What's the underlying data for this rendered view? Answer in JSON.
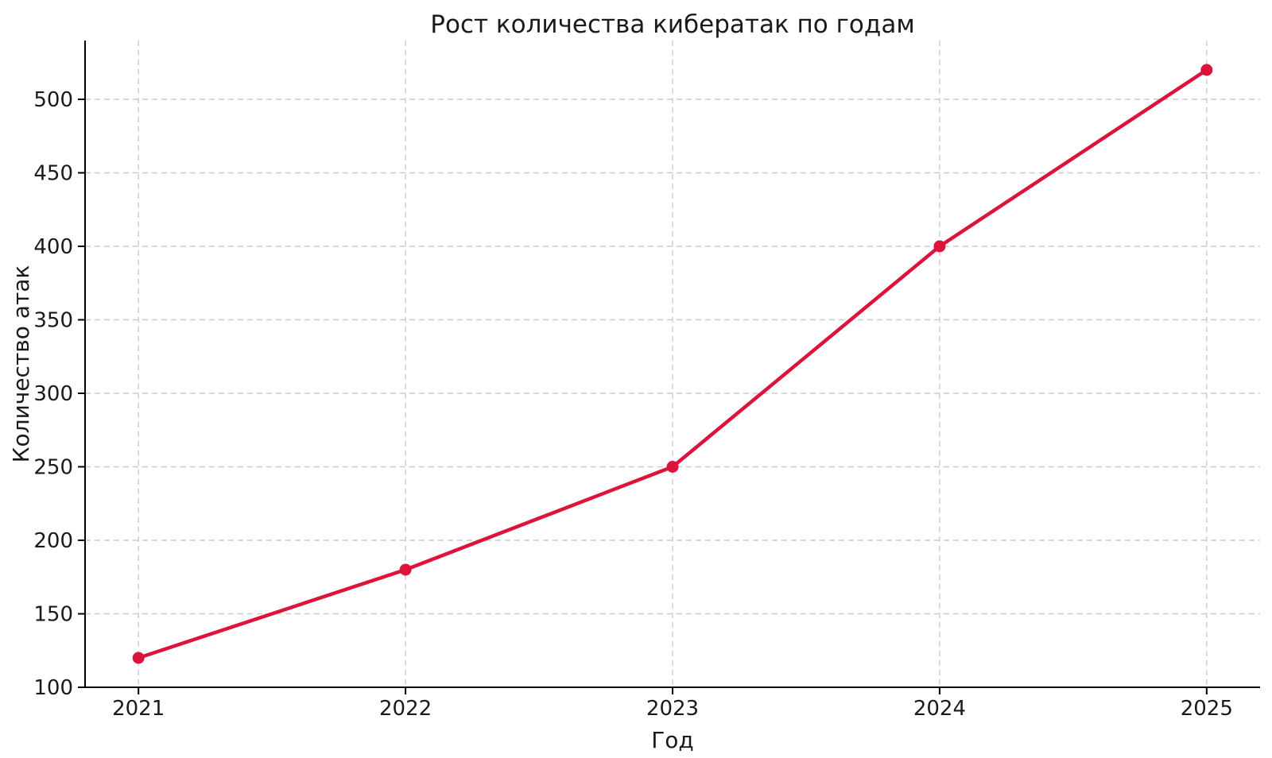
{
  "chart_data": {
    "type": "line",
    "title": "Рост количества кибератак по годам",
    "xlabel": "Год",
    "ylabel": "Количество атак",
    "categories": [
      2021,
      2022,
      2023,
      2024,
      2025
    ],
    "values": [
      120,
      180,
      250,
      400,
      520
    ],
    "ylim": [
      100,
      540
    ],
    "yticks": [
      100,
      150,
      200,
      250,
      300,
      350,
      400,
      450,
      500
    ],
    "xlim_index": [
      -0.2,
      4.2
    ],
    "grid": "dashed, both axes",
    "legend": "none",
    "line_color": "#DC143C",
    "marker": "circle",
    "grid_color": "#cccccc",
    "axis_color": "#000000",
    "text_color": "#1a1a1a"
  }
}
